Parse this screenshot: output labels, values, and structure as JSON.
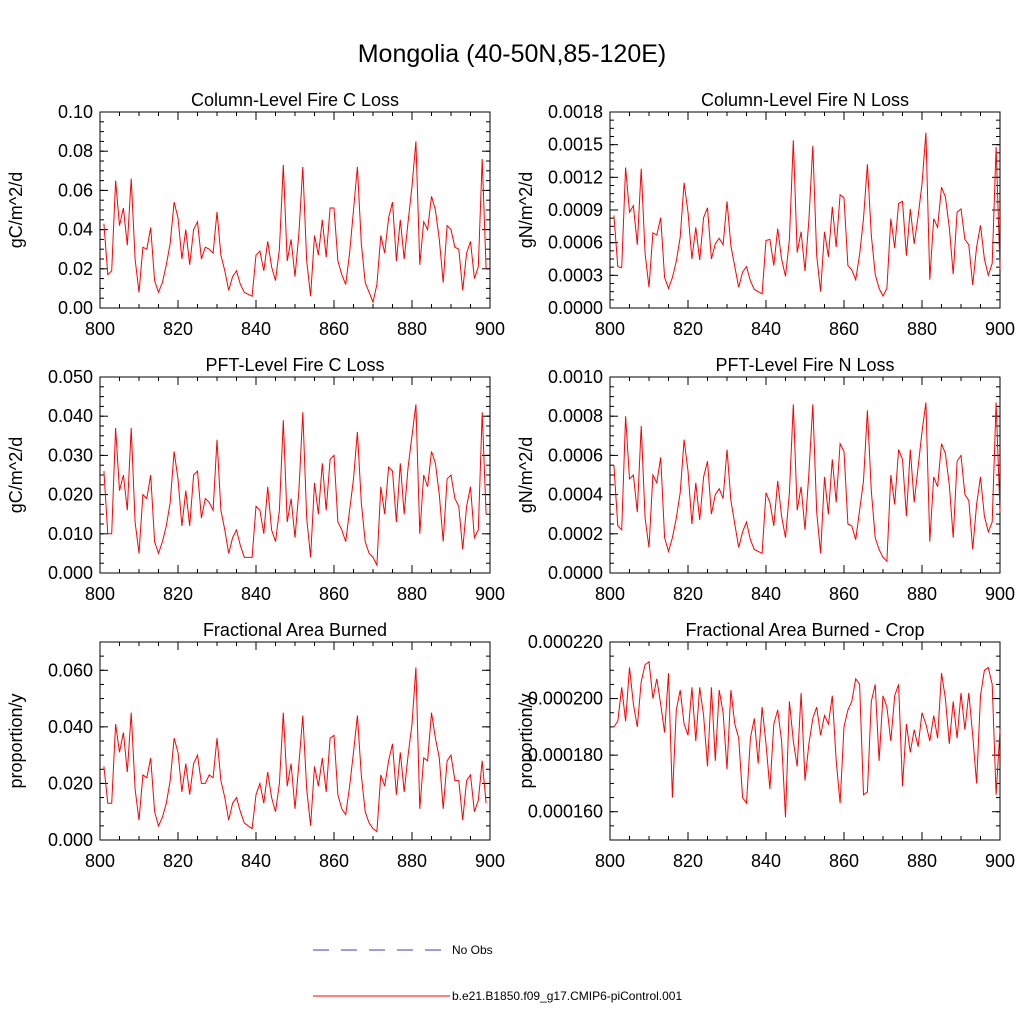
{
  "figure": {
    "title": "Mongolia (40-50N,85-120E)"
  },
  "legend": {
    "obs_label": "No Obs",
    "model_label": "b.e21.B1850.f09_g17.CMIP6-piControl.001",
    "obs_color": "#3b3bc8",
    "model_color": "#ff0000"
  },
  "chart_data": [
    {
      "type": "line",
      "title": "Column-Level Fire C Loss",
      "ylabel": "gC/m^2/d",
      "xlim": [
        800,
        900
      ],
      "ylim": [
        0,
        0.1
      ],
      "xticks": [
        "800",
        "820",
        "840",
        "860",
        "880",
        "900"
      ],
      "yticks": [
        "0.00",
        "0.02",
        "0.04",
        "0.06",
        "0.08",
        "0.10"
      ],
      "x_start": 801,
      "series": [
        {
          "name": "b.e21.B1850.f09_g17.CMIP6-piControl.001",
          "values": [
            0.043,
            0.017,
            0.019,
            0.065,
            0.042,
            0.051,
            0.032,
            0.066,
            0.025,
            0.008,
            0.031,
            0.03,
            0.041,
            0.014,
            0.008,
            0.013,
            0.022,
            0.033,
            0.054,
            0.046,
            0.025,
            0.04,
            0.022,
            0.04,
            0.044,
            0.025,
            0.031,
            0.03,
            0.028,
            0.049,
            0.027,
            0.019,
            0.009,
            0.016,
            0.019,
            0.012,
            0.008,
            0.007,
            0.006,
            0.027,
            0.029,
            0.019,
            0.034,
            0.021,
            0.014,
            0.03,
            0.073,
            0.024,
            0.035,
            0.016,
            0.038,
            0.072,
            0.024,
            0.006,
            0.037,
            0.027,
            0.045,
            0.026,
            0.051,
            0.051,
            0.024,
            0.017,
            0.012,
            0.028,
            0.05,
            0.072,
            0.033,
            0.013,
            0.008,
            0.003,
            0.012,
            0.037,
            0.028,
            0.046,
            0.054,
            0.024,
            0.045,
            0.025,
            0.044,
            0.062,
            0.085,
            0.022,
            0.044,
            0.04,
            0.057,
            0.05,
            0.035,
            0.013,
            0.042,
            0.04,
            0.031,
            0.03,
            0.009,
            0.028,
            0.034,
            0.015,
            0.021,
            0.076,
            0.02
          ]
        }
      ]
    },
    {
      "type": "line",
      "title": "Column-Level Fire N Loss",
      "ylabel": "gN/m^2/d",
      "xlim": [
        800,
        900
      ],
      "ylim": [
        0,
        0.0018
      ],
      "xticks": [
        "800",
        "820",
        "840",
        "860",
        "880",
        "900"
      ],
      "yticks": [
        "0.0000",
        "0.0003",
        "0.0006",
        "0.0009",
        "0.0012",
        "0.0015",
        "0.0018"
      ],
      "x_start": 801,
      "series": [
        {
          "name": "b.e21.B1850.f09_g17.CMIP6-piControl.001",
          "values": [
            0.00085,
            0.00038,
            0.00037,
            0.00129,
            0.00088,
            0.00094,
            0.00058,
            0.00128,
            0.0005,
            0.00019,
            0.00069,
            0.00067,
            0.00083,
            0.00028,
            0.00018,
            0.00028,
            0.00043,
            0.00065,
            0.00115,
            0.00088,
            0.00045,
            0.00074,
            0.00044,
            0.00083,
            0.00092,
            0.00045,
            0.00059,
            0.00064,
            0.00058,
            0.00098,
            0.00057,
            0.00038,
            0.00019,
            0.00033,
            0.00038,
            0.00025,
            0.00017,
            0.00015,
            0.00013,
            0.00062,
            0.00063,
            0.00039,
            0.00073,
            0.00045,
            0.00029,
            0.00063,
            0.00154,
            0.00051,
            0.0007,
            0.00034,
            0.00081,
            0.00149,
            0.00048,
            0.00015,
            0.0007,
            0.00047,
            0.00093,
            0.00056,
            0.00104,
            0.00101,
            0.00039,
            0.00035,
            0.00026,
            0.00049,
            0.00082,
            0.00132,
            0.00067,
            0.00031,
            0.00018,
            0.00011,
            0.00018,
            0.00082,
            0.00055,
            0.00096,
            0.00098,
            0.00048,
            0.00091,
            0.00059,
            0.00084,
            0.00114,
            0.00161,
            0.00026,
            0.00082,
            0.00074,
            0.00111,
            0.00102,
            0.00074,
            0.00031,
            0.00088,
            0.00091,
            0.00063,
            0.00058,
            0.00021,
            0.00056,
            0.00076,
            0.00045,
            0.0003,
            0.00041,
            0.00148,
            0.00036
          ]
        }
      ]
    },
    {
      "type": "line",
      "title": "PFT-Level Fire C Loss",
      "ylabel": "gC/m^2/d",
      "xlim": [
        800,
        900
      ],
      "ylim": [
        0,
        0.05
      ],
      "xticks": [
        "800",
        "820",
        "840",
        "860",
        "880",
        "900"
      ],
      "yticks": [
        "0.000",
        "0.010",
        "0.020",
        "0.030",
        "0.040",
        "0.050"
      ],
      "x_start": 801,
      "series": [
        {
          "name": "b.e21.B1850.f09_g17.CMIP6-piControl.001",
          "values": [
            0.026,
            0.01,
            0.01,
            0.037,
            0.021,
            0.025,
            0.016,
            0.037,
            0.013,
            0.005,
            0.02,
            0.019,
            0.025,
            0.008,
            0.005,
            0.008,
            0.012,
            0.018,
            0.031,
            0.024,
            0.012,
            0.021,
            0.012,
            0.025,
            0.026,
            0.014,
            0.019,
            0.018,
            0.016,
            0.034,
            0.016,
            0.011,
            0.005,
            0.009,
            0.011,
            0.007,
            0.004,
            0.004,
            0.004,
            0.017,
            0.016,
            0.01,
            0.022,
            0.011,
            0.008,
            0.016,
            0.039,
            0.013,
            0.019,
            0.009,
            0.021,
            0.041,
            0.014,
            0.004,
            0.023,
            0.015,
            0.028,
            0.016,
            0.029,
            0.03,
            0.013,
            0.011,
            0.008,
            0.016,
            0.024,
            0.036,
            0.018,
            0.008,
            0.005,
            0.004,
            0.002,
            0.022,
            0.015,
            0.027,
            0.026,
            0.013,
            0.028,
            0.015,
            0.027,
            0.035,
            0.043,
            0.01,
            0.025,
            0.022,
            0.031,
            0.028,
            0.02,
            0.008,
            0.024,
            0.025,
            0.019,
            0.017,
            0.006,
            0.017,
            0.022,
            0.009,
            0.011,
            0.041,
            0.015
          ]
        }
      ]
    },
    {
      "type": "line",
      "title": "PFT-Level Fire N Loss",
      "ylabel": "gN/m^2/d",
      "xlim": [
        800,
        900
      ],
      "ylim": [
        0,
        0.001
      ],
      "xticks": [
        "800",
        "820",
        "840",
        "860",
        "880",
        "900"
      ],
      "yticks": [
        "0.0000",
        "0.0002",
        "0.0004",
        "0.0006",
        "0.0008",
        "0.0010"
      ],
      "x_start": 801,
      "series": [
        {
          "name": "b.e21.B1850.f09_g17.CMIP6-piControl.001",
          "values": [
            0.00055,
            0.00024,
            0.00022,
            0.0008,
            0.00048,
            0.0005,
            0.00031,
            0.00075,
            0.00028,
            0.00013,
            0.0005,
            0.00046,
            0.00059,
            0.00018,
            0.00011,
            0.00018,
            0.00028,
            0.00041,
            0.00068,
            0.00052,
            0.00025,
            0.00046,
            0.00027,
            0.00049,
            0.00057,
            0.0003,
            0.0004,
            0.00043,
            0.00038,
            0.00063,
            0.00037,
            0.00025,
            0.00013,
            0.00021,
            0.00026,
            0.00017,
            0.00012,
            0.00011,
            0.0001,
            0.00041,
            0.00036,
            0.00024,
            0.00047,
            0.00029,
            0.00018,
            0.00041,
            0.00086,
            0.00032,
            0.00044,
            0.00022,
            0.00051,
            0.00086,
            0.00031,
            0.0001,
            0.00049,
            0.0003,
            0.00058,
            0.00036,
            0.00066,
            0.00062,
            0.00025,
            0.00024,
            0.00017,
            0.00032,
            0.00047,
            0.00083,
            0.00042,
            0.00018,
            0.00012,
            8e-05,
            6e-05,
            0.0005,
            0.00035,
            0.00063,
            0.00058,
            0.00029,
            0.00063,
            0.00036,
            0.00054,
            0.00072,
            0.00087,
            0.00016,
            0.00049,
            0.00044,
            0.00066,
            0.00061,
            0.00045,
            0.00018,
            0.00057,
            0.0006,
            0.0004,
            0.00037,
            0.00012,
            0.00035,
            0.00049,
            0.00029,
            0.00021,
            0.00026,
            0.00087,
            0.00031
          ]
        }
      ]
    },
    {
      "type": "line",
      "title": "Fractional Area Burned",
      "ylabel": "proportion/y",
      "xlim": [
        800,
        900
      ],
      "ylim": [
        0,
        0.07
      ],
      "xticks": [
        "800",
        "820",
        "840",
        "860",
        "880",
        "900"
      ],
      "yticks": [
        "0.000",
        "0.020",
        "0.040",
        "0.060"
      ],
      "ytick_values": [
        0,
        0.02,
        0.04,
        0.06
      ],
      "x_start": 801,
      "series": [
        {
          "name": "b.e21.B1850.f09_g17.CMIP6-piControl.001",
          "values": [
            0.026,
            0.013,
            0.013,
            0.041,
            0.031,
            0.038,
            0.024,
            0.045,
            0.018,
            0.007,
            0.023,
            0.022,
            0.029,
            0.01,
            0.005,
            0.008,
            0.013,
            0.021,
            0.036,
            0.031,
            0.017,
            0.027,
            0.016,
            0.027,
            0.03,
            0.02,
            0.02,
            0.023,
            0.022,
            0.036,
            0.021,
            0.015,
            0.007,
            0.013,
            0.015,
            0.01,
            0.006,
            0.005,
            0.004,
            0.016,
            0.02,
            0.013,
            0.024,
            0.015,
            0.01,
            0.02,
            0.045,
            0.019,
            0.027,
            0.011,
            0.027,
            0.044,
            0.018,
            0.005,
            0.026,
            0.019,
            0.029,
            0.017,
            0.036,
            0.037,
            0.016,
            0.011,
            0.009,
            0.019,
            0.031,
            0.044,
            0.023,
            0.01,
            0.006,
            0.004,
            0.003,
            0.023,
            0.019,
            0.028,
            0.034,
            0.016,
            0.031,
            0.017,
            0.03,
            0.041,
            0.061,
            0.011,
            0.029,
            0.028,
            0.045,
            0.036,
            0.029,
            0.011,
            0.028,
            0.03,
            0.021,
            0.021,
            0.007,
            0.021,
            0.023,
            0.01,
            0.014,
            0.028,
            0.013
          ]
        }
      ]
    },
    {
      "type": "line",
      "title": "Fractional Area Burned - Crop",
      "ylabel": "proportion/y",
      "xlim": [
        800,
        900
      ],
      "ylim": [
        0.00015,
        0.00022
      ],
      "xticks": [
        "800",
        "820",
        "840",
        "860",
        "880",
        "900"
      ],
      "yticks": [
        "0.000160",
        "0.000180",
        "0.000200",
        "0.000220"
      ],
      "ytick_values": [
        0.00016,
        0.00018,
        0.0002,
        0.00022
      ],
      "x_start": 801,
      "series": [
        {
          "name": "b.e21.B1850.f09_g17.CMIP6-piControl.001",
          "values": [
            0.00019,
            0.000192,
            0.000204,
            0.000192,
            0.000211,
            0.000198,
            0.00019,
            0.000206,
            0.000212,
            0.000213,
            0.0002,
            0.000207,
            0.000198,
            0.000188,
            0.000209,
            0.000165,
            0.000196,
            0.000203,
            0.000191,
            0.000187,
            0.000204,
            0.000185,
            0.000204,
            0.000194,
            0.000176,
            0.000204,
            0.000178,
            0.000203,
            0.000195,
            0.000175,
            0.000203,
            0.000191,
            0.000186,
            0.000165,
            0.000163,
            0.000186,
            0.000193,
            0.000177,
            0.000197,
            0.000184,
            0.000168,
            0.000191,
            0.000196,
            0.000185,
            0.000158,
            0.000199,
            0.000185,
            0.000176,
            0.000202,
            0.000171,
            0.000184,
            0.000193,
            0.000197,
            0.000187,
            0.000194,
            0.000191,
            0.000201,
            0.000178,
            0.000163,
            0.00019,
            0.000196,
            0.000199,
            0.000207,
            0.000205,
            0.000166,
            0.000167,
            0.000199,
            0.000205,
            0.000178,
            0.000201,
            0.000197,
            0.000185,
            0.000201,
            0.000205,
            0.000169,
            0.000191,
            0.000181,
            0.000189,
            0.000183,
            0.000195,
            0.000191,
            0.000185,
            0.000194,
            0.000186,
            0.000209,
            0.0002,
            0.000184,
            0.000199,
            0.000186,
            0.000202,
            0.000189,
            0.000202,
            0.000187,
            0.00017,
            0.000201,
            0.00021,
            0.000211,
            0.000205,
            0.000166,
            0.000189
          ]
        }
      ]
    }
  ]
}
